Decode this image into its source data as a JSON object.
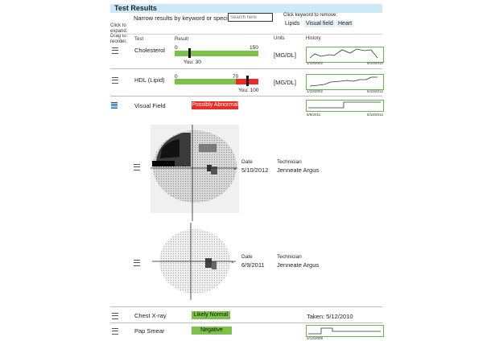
{
  "title": "Test Results",
  "filter": {
    "prompt": "Narrow results by keyword or specialty",
    "search_placeholder": "Search here",
    "remove_hint": "Click keyword to remove:",
    "keywords": [
      "Lipids",
      "Visual field",
      "Heart"
    ]
  },
  "columns": {
    "reorder_hint": [
      "Click to",
      "expand.",
      "Drag to",
      "reorder."
    ],
    "test": "Test",
    "result": "Result",
    "units": "Units",
    "history": "History"
  },
  "colors": {
    "normal": "#7cc24a",
    "abnormal": "#ee2a24",
    "title_bg": "#cde8f7",
    "selected_handle": "#8fc3ea"
  },
  "rows": [
    {
      "name": "Cholesterol",
      "range": {
        "low": "0",
        "high": "150"
      },
      "value_label": "You: 30",
      "value": 30,
      "units": "[MG/DL]",
      "history": {
        "start": "1/10/2002",
        "end": "6/10/2012"
      }
    },
    {
      "name": "HDL (Lipid)",
      "range": {
        "low": "0",
        "high": "70"
      },
      "value_label": "You: 100",
      "value": 100,
      "units": "[MG/DL]",
      "history": {
        "start": "1/10/2002",
        "end": "6/10/2012"
      }
    },
    {
      "name": "Visual Field",
      "status": "Possibly Abnormal",
      "history": {
        "start": "6/9/2011",
        "end": "5/10/2012"
      },
      "exams": [
        {
          "date_label": "Date",
          "date": "5/10/2012",
          "tech_label": "Technician",
          "technician": "Jenneate Argus"
        },
        {
          "date_label": "Date",
          "date": "6/9/2011",
          "tech_label": "Technician",
          "technician": "Jenneate Argus"
        }
      ]
    },
    {
      "name": "Chest X-ray",
      "status": "Likely Normal",
      "taken": "Taken: 5/12/2010"
    },
    {
      "name": "Pap Smear",
      "status": "Negative",
      "history": {
        "start": "2/13/2008"
      }
    }
  ]
}
